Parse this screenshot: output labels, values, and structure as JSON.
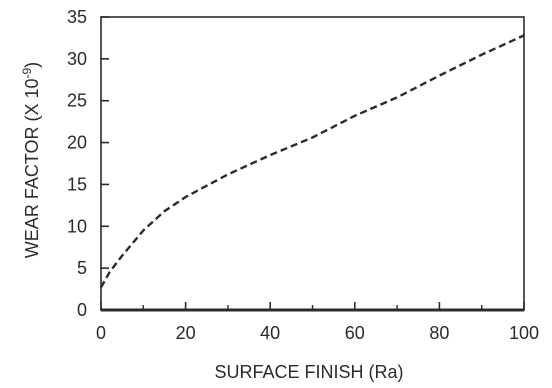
{
  "chart_data": {
    "type": "line",
    "title": "",
    "xlabel": "SURFACE FINISH (Ra)",
    "ylabel": "WEAR FACTOR (X 10",
    "ylabel_superscript": "-9",
    "ylabel_suffix": ")",
    "xlim": [
      0,
      100
    ],
    "ylim": [
      0,
      35
    ],
    "xticks": [
      0,
      20,
      40,
      60,
      80,
      100
    ],
    "yticks": [
      0,
      5,
      10,
      15,
      20,
      25,
      30,
      35
    ],
    "grid": false,
    "series": [
      {
        "line_style": "dashed",
        "color": "#2b2b2b",
        "x": [
          0,
          2,
          5,
          10,
          15,
          20,
          30,
          40,
          50,
          60,
          70,
          80,
          90,
          100
        ],
        "y": [
          2.7,
          4.5,
          6.5,
          9.5,
          11.8,
          13.5,
          16.2,
          18.5,
          20.6,
          23.2,
          25.4,
          28.0,
          30.5,
          32.8
        ]
      }
    ]
  }
}
